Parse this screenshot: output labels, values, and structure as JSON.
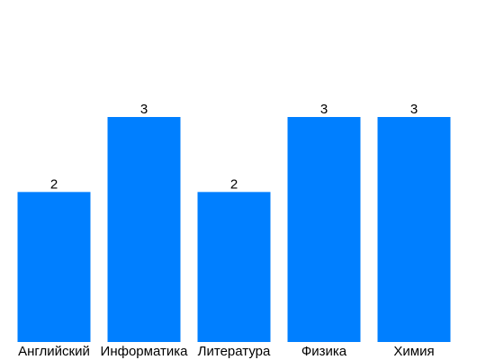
{
  "chart_data": {
    "type": "bar",
    "categories": [
      "Английский",
      "Информатика",
      "Литература",
      "Физика",
      "Химия"
    ],
    "values": [
      2,
      3,
      2,
      3,
      3
    ],
    "data_labels": [
      "2",
      "3",
      "2",
      "3",
      "3"
    ],
    "title": "",
    "xlabel": "",
    "ylabel": "",
    "ylim": [
      0,
      4.5
    ],
    "grid": false,
    "legend": "none",
    "bar_color": "#007fff"
  }
}
